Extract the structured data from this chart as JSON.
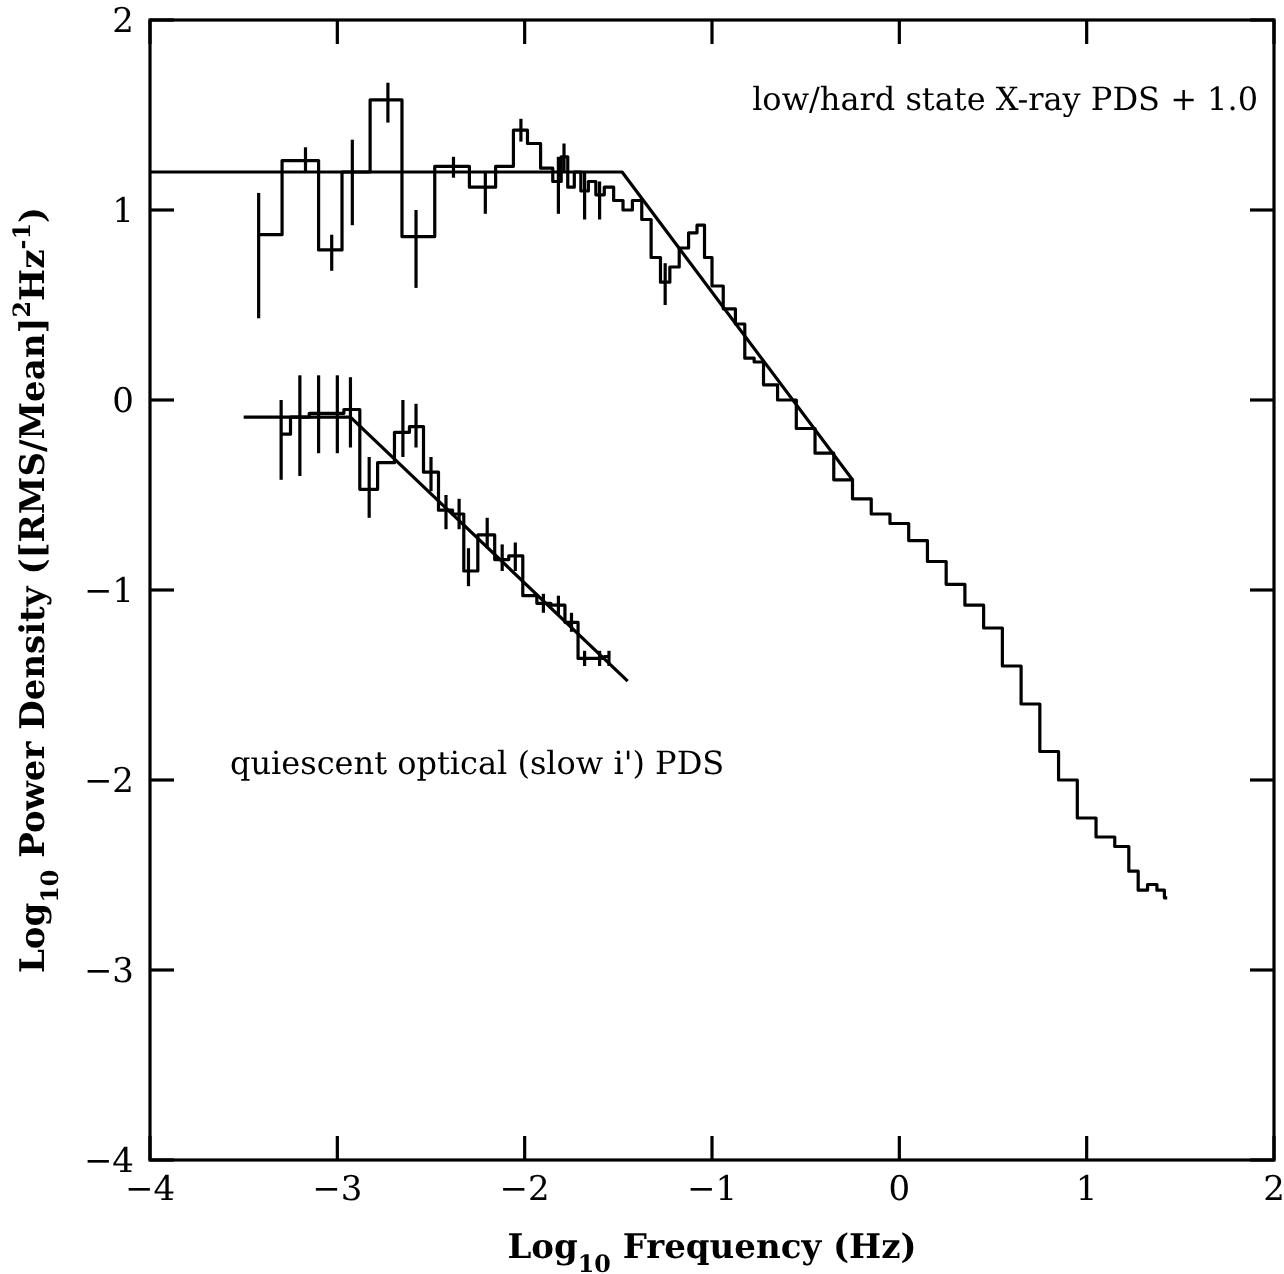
{
  "chart_data": {
    "type": "step",
    "xlabel": "Log$_{10}$ Frequency (Hz)",
    "ylabel": "Log$_{10}$ Power Density ([RMS/Mean]$^{2}$Hz$^{-1}$)",
    "xlim": [
      -4,
      2
    ],
    "ylim": [
      -4,
      2
    ],
    "xticks": [
      -4,
      -3,
      -2,
      -1,
      0,
      1,
      2
    ],
    "yticks": [
      -4,
      -3,
      -2,
      -1,
      0,
      1,
      2
    ],
    "grid": false,
    "annotations": [
      "low/hard state X-ray PDS + 1.0",
      "quiescent optical (slow i') PDS"
    ],
    "series": [
      {
        "color": "#000000",
        "x": [
          -3.42,
          -3.17,
          -3.03,
          -2.92,
          -2.73,
          -2.58,
          -2.38,
          -2.21,
          -2.1,
          -2.02,
          -1.95,
          -1.88,
          -1.82,
          -1.79,
          -1.75,
          -1.72,
          -1.68,
          -1.64,
          -1.6,
          -1.55,
          -1.5,
          -1.45,
          -1.4,
          -1.35,
          -1.3,
          -1.25,
          -1.2,
          -1.15,
          -1.1,
          -1.06,
          -1.02,
          -0.98,
          -0.9,
          -0.85,
          -0.8,
          -0.75,
          -0.7,
          -0.6,
          -0.5,
          -0.4,
          -0.3,
          -0.2,
          -0.1,
          0,
          0.1,
          0.2,
          0.3,
          0.4,
          0.5,
          0.6,
          0.7,
          0.8,
          0.9,
          1.0,
          1.1,
          1.2,
          1.25,
          1.3,
          1.35,
          1.4,
          1.43
        ],
        "values": [
          0.87,
          1.26,
          0.79,
          1.2,
          1.58,
          0.86,
          1.23,
          1.12,
          1.23,
          1.42,
          1.35,
          1.22,
          1.15,
          1.28,
          1.12,
          1.2,
          1.1,
          1.15,
          1.08,
          1.12,
          1.05,
          1.0,
          1.05,
          0.95,
          0.75,
          0.62,
          0.7,
          0.8,
          0.88,
          0.92,
          0.75,
          0.6,
          0.48,
          0.4,
          0.22,
          0.2,
          0.08,
          0.0,
          -0.15,
          -0.28,
          -0.42,
          -0.52,
          -0.6,
          -0.65,
          -0.74,
          -0.85,
          -0.97,
          -1.08,
          -1.2,
          -1.4,
          -1.6,
          -1.85,
          -2.0,
          -2.2,
          -2.3,
          -2.35,
          -2.48,
          -2.58,
          -2.55,
          -2.58,
          -2.62
        ],
        "errors": [
          [
            0.43,
            1.09
          ],
          [
            1.2,
            1.33
          ],
          [
            0.68,
            0.87
          ],
          [
            0.92,
            1.37
          ],
          [
            1.46,
            1.67
          ],
          [
            0.59,
            1.0
          ],
          [
            1.17,
            1.28
          ],
          [
            0.98,
            1.2
          ],
          null,
          [
            1.36,
            1.48
          ],
          null,
          null,
          [
            0.98,
            1.28
          ],
          [
            1.2,
            1.35
          ],
          null,
          null,
          [
            0.95,
            1.2
          ],
          null,
          [
            0.95,
            1.15
          ],
          null,
          null,
          null,
          null,
          null,
          null,
          [
            0.5,
            0.72
          ],
          null,
          null,
          null,
          null,
          null,
          null,
          null,
          null,
          null,
          null,
          null,
          null,
          null,
          null,
          null,
          null,
          null,
          null,
          null,
          null,
          null,
          null,
          null,
          null,
          null,
          null,
          null,
          null,
          null,
          null,
          null,
          null,
          null,
          null,
          null
        ]
      },
      {
        "type": "line",
        "color": "#000000",
        "x": [
          -4,
          -1.48,
          -0.25
        ],
        "values": [
          1.2,
          1.2,
          -0.42
        ]
      },
      {
        "color": "#000000",
        "x": [
          -3.3,
          -3.2,
          -3.1,
          -3.0,
          -2.93,
          -2.83,
          -2.74,
          -2.65,
          -2.58,
          -2.5,
          -2.42,
          -2.35,
          -2.3,
          -2.2,
          -2.12,
          -2.05,
          -1.97,
          -1.9,
          -1.82,
          -1.75,
          -1.68,
          -1.6,
          -1.55
        ],
        "values": [
          -0.18,
          -0.09,
          -0.07,
          -0.07,
          -0.05,
          -0.47,
          -0.33,
          -0.17,
          -0.14,
          -0.38,
          -0.58,
          -0.6,
          -0.9,
          -0.71,
          -0.84,
          -0.82,
          -1.03,
          -1.07,
          -1.08,
          -1.17,
          -1.36,
          -1.36,
          -1.35
        ],
        "errors": [
          [
            -0.42,
            0.0
          ],
          [
            -0.4,
            0.13
          ],
          [
            -0.28,
            0.13
          ],
          [
            -0.28,
            0.13
          ],
          [
            -0.25,
            0.12
          ],
          [
            -0.62,
            -0.3
          ],
          null,
          [
            -0.3,
            0.0
          ],
          [
            -0.25,
            -0.02
          ],
          [
            -0.48,
            -0.3
          ],
          [
            -0.68,
            -0.5
          ],
          [
            -0.68,
            -0.52
          ],
          [
            -0.98,
            -0.78
          ],
          [
            -0.78,
            -0.62
          ],
          [
            -0.9,
            -0.76
          ],
          [
            -0.9,
            -0.75
          ],
          null,
          [
            -1.12,
            -1.02
          ],
          [
            -1.13,
            -1.03
          ],
          [
            -1.22,
            -1.12
          ],
          [
            -1.4,
            -1.32
          ],
          [
            -1.4,
            -1.32
          ],
          [
            -1.4,
            -1.32
          ]
        ]
      },
      {
        "type": "line",
        "color": "#000000",
        "x": [
          -3.5,
          -2.93,
          -1.45
        ],
        "values": [
          -0.09,
          -0.09,
          -1.48
        ]
      }
    ]
  }
}
